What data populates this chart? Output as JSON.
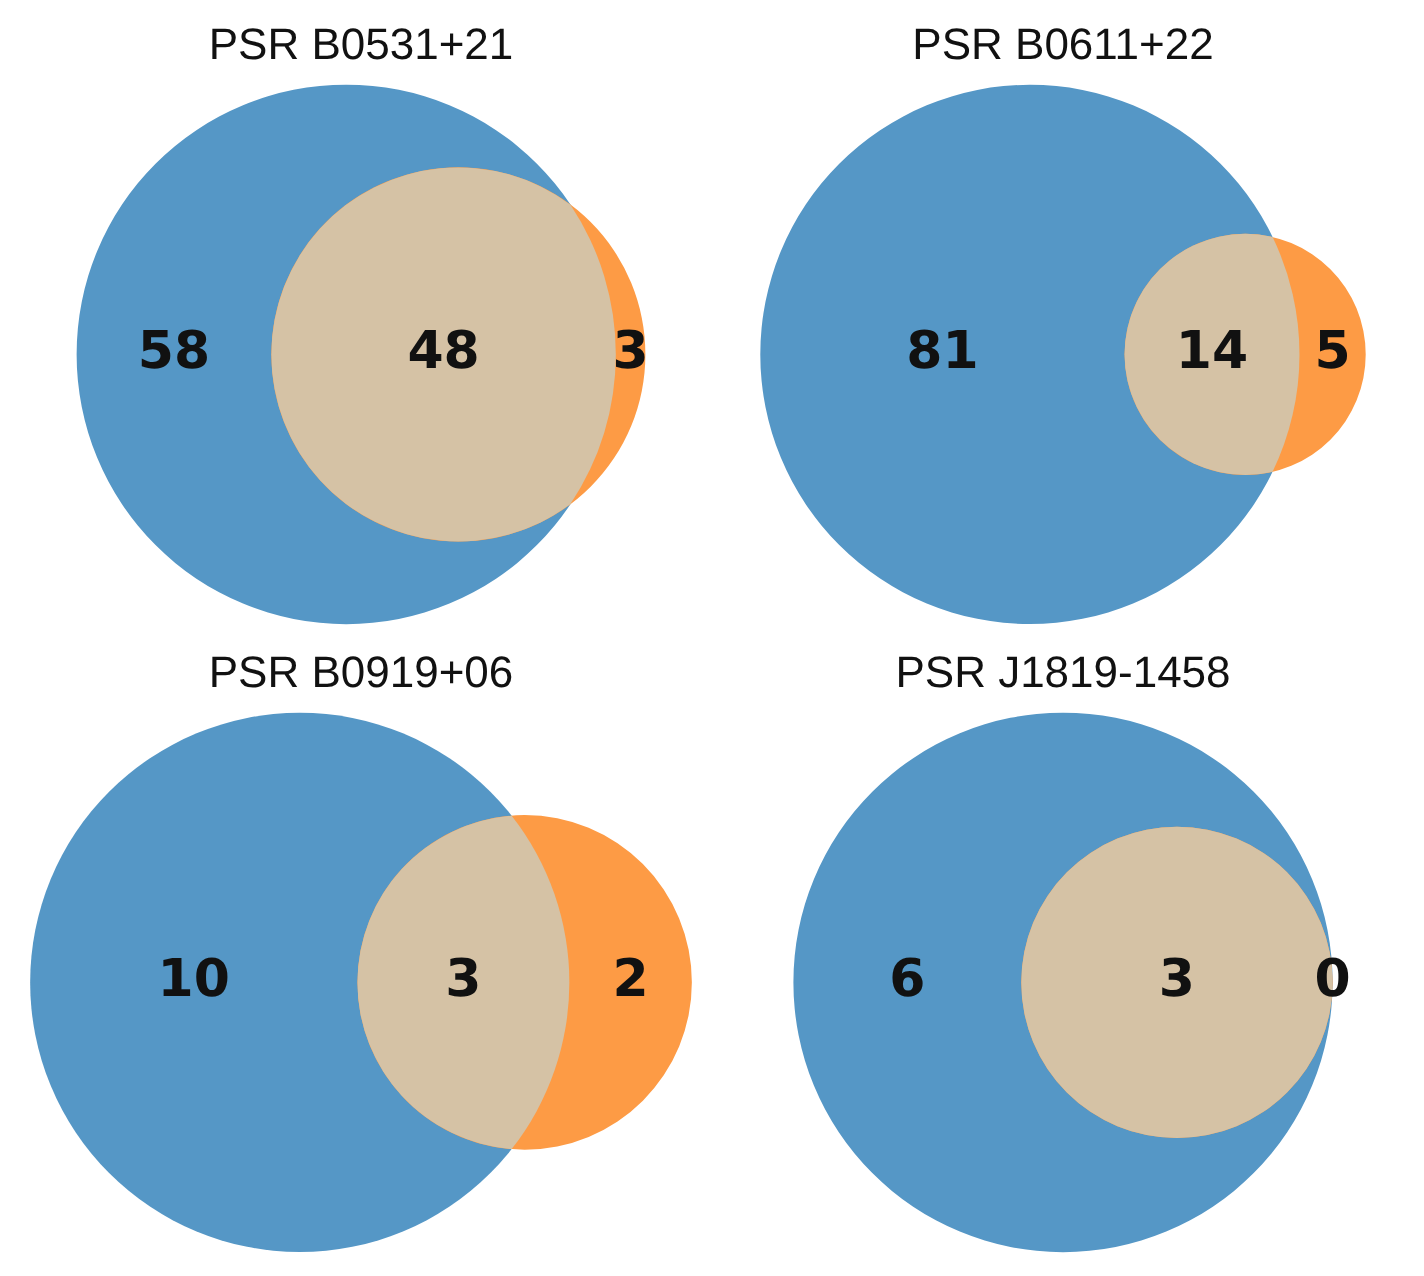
{
  "chart_data": [
    {
      "type": "other",
      "title": "PSR B0531+21",
      "data_labels": true,
      "categories": [
        null,
        null,
        null
      ],
      "values": [
        58,
        48,
        3
      ],
      "colors": [
        "#5597c6",
        "#d5c2a5",
        "#fd9b45"
      ]
    },
    {
      "type": "other",
      "title": "PSR B0611+22",
      "data_labels": true,
      "categories": [
        null,
        null,
        null
      ],
      "values": [
        81,
        14,
        5
      ],
      "colors": [
        "#5597c6",
        "#d5c2a5",
        "#fd9b45"
      ]
    },
    {
      "type": "other",
      "title": "PSR B0919+06",
      "data_labels": true,
      "categories": [
        null,
        null,
        null
      ],
      "values": [
        10,
        3,
        2
      ],
      "colors": [
        "#5597c6",
        "#d5c2a5",
        "#fd9b45"
      ]
    },
    {
      "type": "other",
      "title": "PSR J1819-1458",
      "data_labels": true,
      "categories": [
        null,
        null,
        null
      ],
      "values": [
        6,
        3,
        0
      ],
      "colors": [
        "#5597c6",
        "#d5c2a5",
        "#fd9b45"
      ]
    }
  ]
}
